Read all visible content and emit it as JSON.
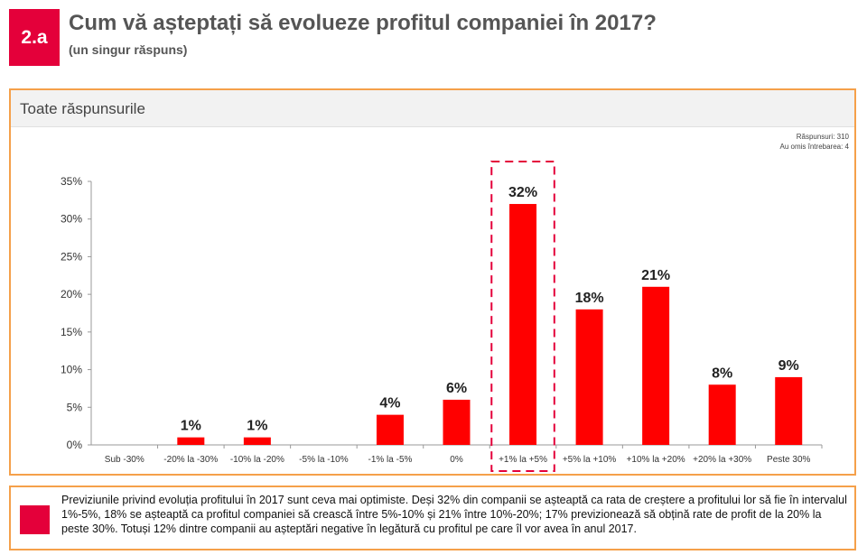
{
  "header": {
    "badge": "2.a",
    "title": "Cum vă așteptați să evolueze profitul companiei în 2017?",
    "subtitle": "(un singur răspuns)"
  },
  "panel": {
    "title": "Toate răspunsurile",
    "responses": "Răspunsuri: 310",
    "skipped": "Au omis întrebarea: 4"
  },
  "colors": {
    "bar": "#ff0000",
    "accent": "#e4003a",
    "border": "#f5a04a"
  },
  "chart_data": {
    "type": "bar",
    "categories": [
      "Sub -30%",
      "-20% la -30%",
      "-10% la -20%",
      "-5% la -10%",
      "-1% la -5%",
      "0%",
      "+1% la +5%",
      "+5% la +10%",
      "+10% la +20%",
      "+20% la +30%",
      "Peste 30%"
    ],
    "values": [
      0,
      1,
      1,
      0,
      4,
      6,
      32,
      18,
      21,
      8,
      9
    ],
    "data_labels": [
      "",
      "1%",
      "1%",
      "",
      "4%",
      "6%",
      "32%",
      "18%",
      "21%",
      "8%",
      "9%"
    ],
    "ylim": [
      0,
      35
    ],
    "yticks": [
      0,
      5,
      10,
      15,
      20,
      25,
      30,
      35
    ],
    "ytick_labels": [
      "0%",
      "5%",
      "10%",
      "15%",
      "20%",
      "25%",
      "30%",
      "35%"
    ],
    "highlight_index": 6,
    "title": "",
    "xlabel": "",
    "ylabel": ""
  },
  "footer": {
    "text": "Previziunile privind evoluția profitului în 2017 sunt ceva mai optimiste. Deși 32% din companii se așteaptă ca rata de creștere a profitului lor să fie în intervalul 1%-5%, 18% se așteaptă ca profitul companiei să crească între 5%-10% și 21% între 10%-20%; 17% previzionează să obțină rate de profit de la 20% la peste 30%. Totuși 12% dintre companii au așteptări negative în legătură cu profitul pe care îl vor avea în anul 2017."
  }
}
